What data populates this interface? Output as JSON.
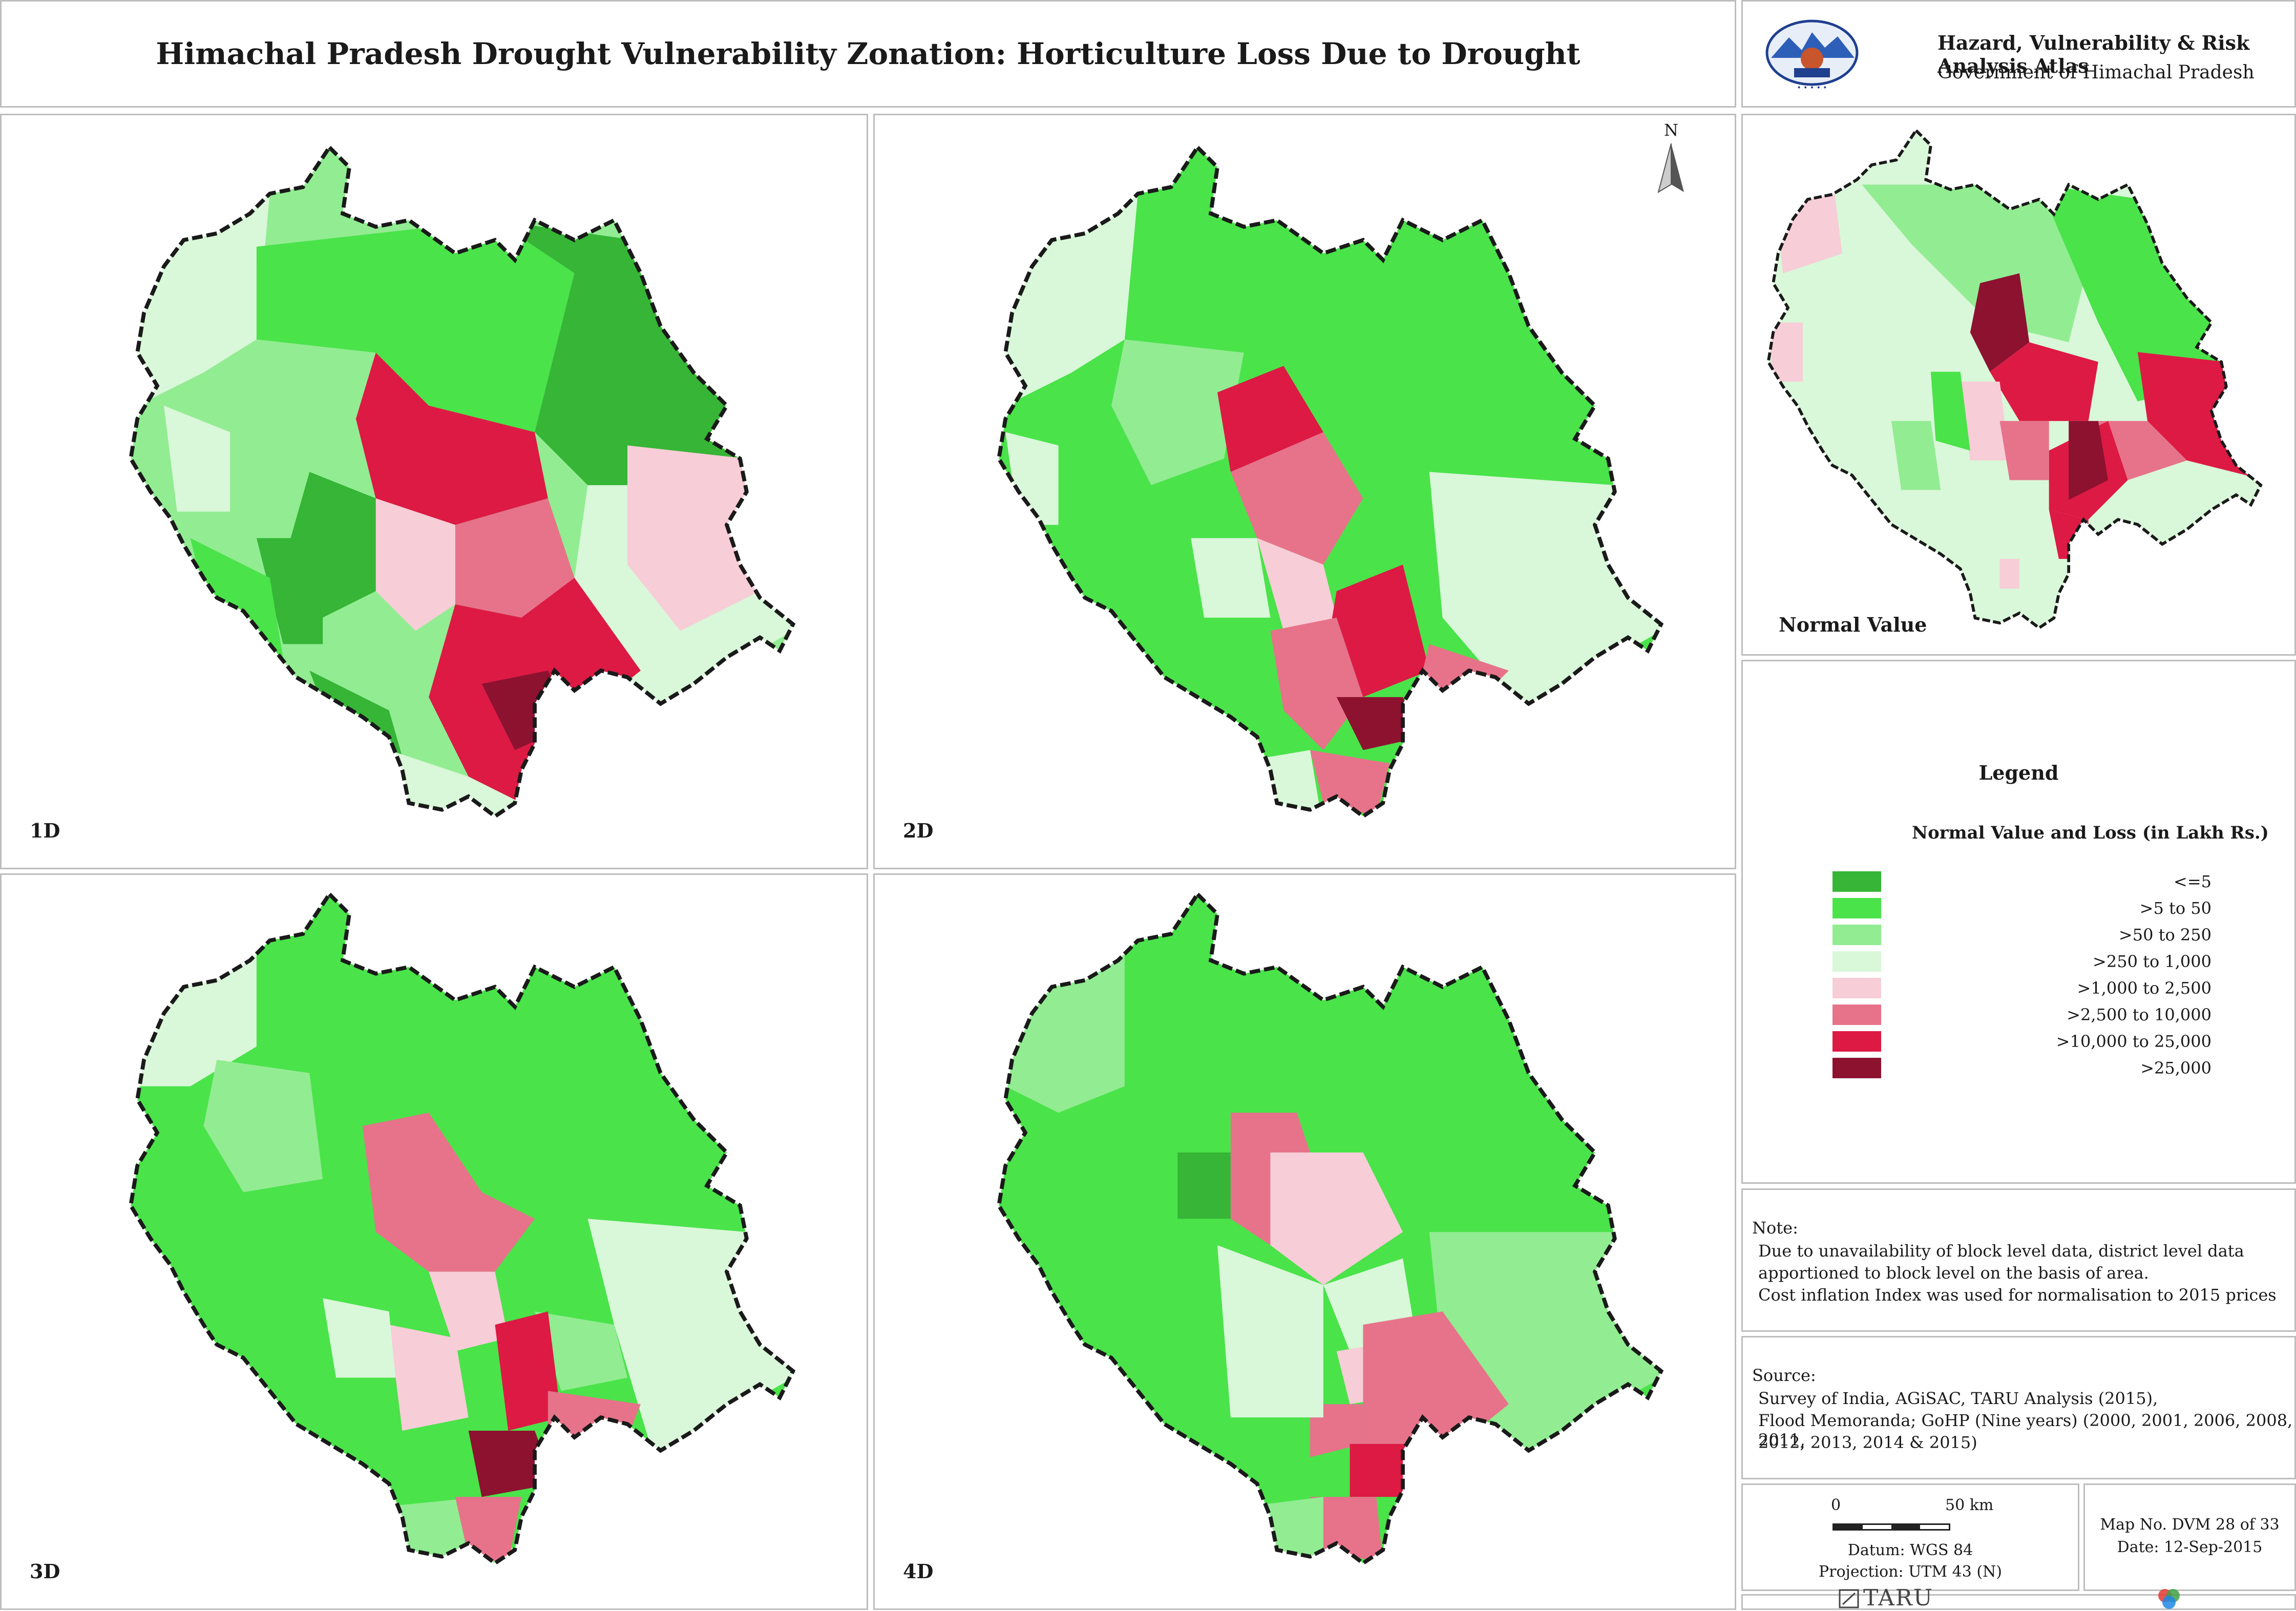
{
  "header": {
    "title": "Himachal Pradesh Drought Vulnerability Zonation: Horticulture Loss Due to Drought",
    "atlas_title": "Hazard, Vulnerability & Risk Analysis Atlas",
    "government": "Government of Himachal Pradesh"
  },
  "maps": [
    {
      "label": "1D"
    },
    {
      "label": "2D"
    },
    {
      "label": "3D"
    },
    {
      "label": "4D"
    }
  ],
  "north_arrow": "N",
  "normal_value": {
    "label": "Normal Value"
  },
  "legend": {
    "heading": "Legend",
    "subtitle": "Normal Value and Loss (in Lakh Rs.)",
    "classes": [
      {
        "label": "<=5",
        "color": "#36b536"
      },
      {
        "label": ">5 to 50",
        "color": "#4ae34a"
      },
      {
        "label": ">50 to 250",
        "color": "#92ec92"
      },
      {
        "label": ">250 to 1,000",
        "color": "#d9f7d9"
      },
      {
        "label": ">1,000 to 2,500",
        "color": "#f7cdd7"
      },
      {
        "label": ">2,500 to 10,000",
        "color": "#e6738a"
      },
      {
        "label": ">10,000 to 25,000",
        "color": "#dc1a44"
      },
      {
        "label": ">25,000",
        "color": "#8c1230"
      }
    ]
  },
  "note": {
    "heading": "Note:",
    "lines": [
      "Due to unavailability of block level data, district level data",
      "apportioned to block level on the basis of area.",
      "Cost inflation Index was used for normalisation to 2015 prices"
    ]
  },
  "source": {
    "heading": "Source:",
    "lines": [
      "Survey of India, AGiSAC, TARU Analysis (2015),",
      "Flood Memoranda; GoHP (Nine years) (2000, 2001, 2006, 2008, 2011,",
      "2012, 2013, 2014 & 2015)"
    ]
  },
  "scale": {
    "start": "0",
    "end": "50 km",
    "datum": "Datum: WGS 84",
    "projection": "Projection: UTM 43 (N)"
  },
  "map_info": {
    "number": "Map No. DVM 28 of 33",
    "date": "Date: 12-Sep-2015"
  },
  "footer": {
    "org": "TARU"
  }
}
